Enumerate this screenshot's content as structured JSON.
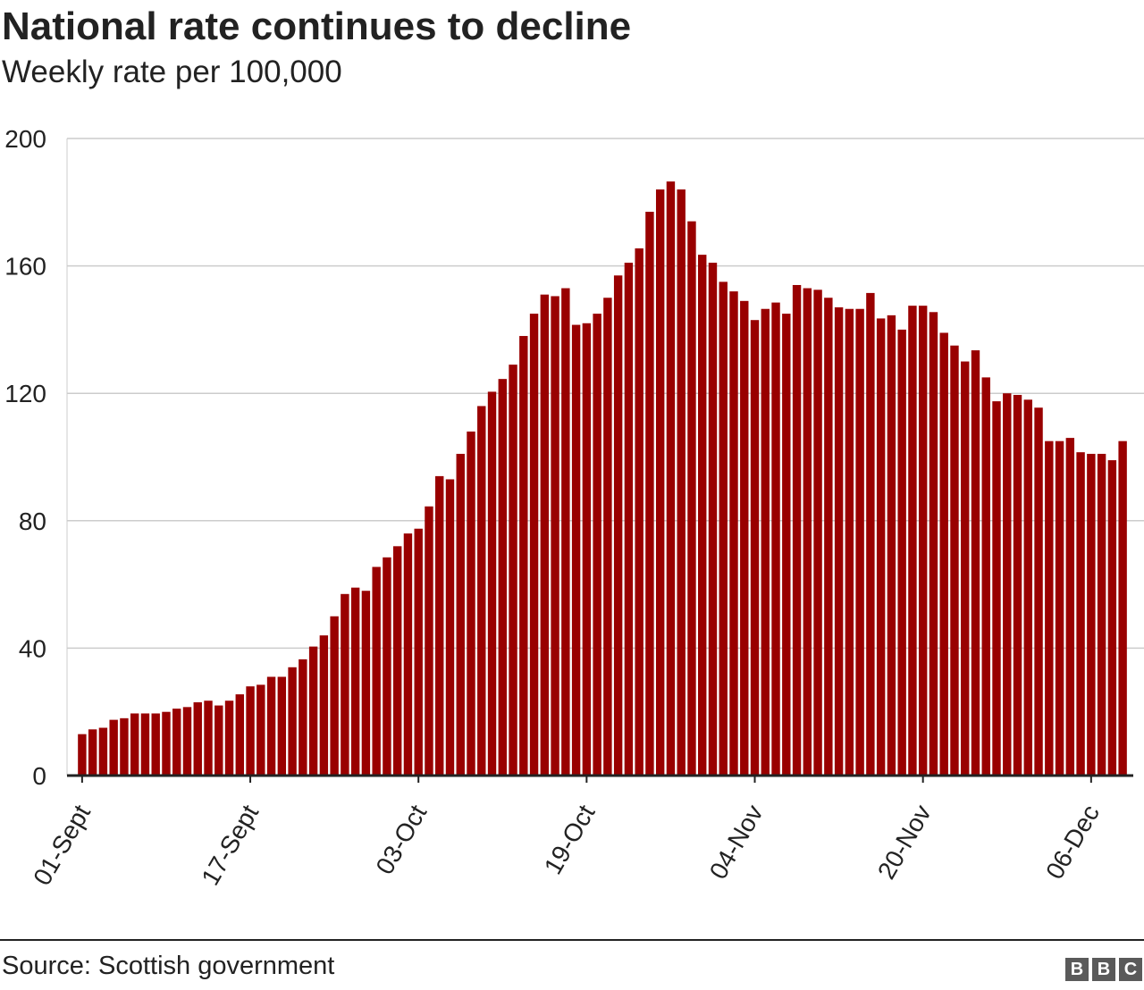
{
  "header": {
    "title": "National rate continues to decline",
    "subtitle": "Weekly rate per 100,000"
  },
  "footer": {
    "source": "Source: Scottish government",
    "logo_letters": [
      "B",
      "B",
      "C"
    ]
  },
  "colors": {
    "bar": "#990000",
    "grid": "#cccccc",
    "axis": "#222222",
    "text": "#222222",
    "logo_bg": "#5a5a5a"
  },
  "chart_data": {
    "type": "bar",
    "title": "National rate continues to decline",
    "subtitle": "Weekly rate per 100,000",
    "xlabel": "",
    "ylabel": "Weekly rate per 100,000",
    "ylim": [
      0,
      200
    ],
    "yticks": [
      0,
      40,
      80,
      120,
      160,
      200
    ],
    "grid": true,
    "xtick_labels": [
      {
        "label": "01-Sept",
        "index": 0
      },
      {
        "label": "17-Sept",
        "index": 16
      },
      {
        "label": "03-Oct",
        "index": 32
      },
      {
        "label": "19-Oct",
        "index": 48
      },
      {
        "label": "04-Nov",
        "index": 64
      },
      {
        "label": "20-Nov",
        "index": 80
      },
      {
        "label": "06-Dec",
        "index": 96
      }
    ],
    "series": [
      {
        "name": "Weekly rate per 100,000",
        "values": [
          13,
          14.5,
          15,
          17.5,
          18,
          19.5,
          19.5,
          19.5,
          20,
          21,
          21.5,
          23,
          23.5,
          22,
          23.5,
          25.5,
          28,
          28.5,
          31,
          31,
          34,
          36.5,
          40.5,
          44,
          50,
          57,
          59,
          58,
          65.5,
          68.5,
          72,
          76,
          77.5,
          84.5,
          94,
          93,
          101,
          108,
          116,
          120.5,
          124.5,
          129,
          138,
          145,
          151,
          150.5,
          153,
          141.5,
          142,
          145,
          150,
          157,
          161,
          165.5,
          177,
          184,
          186.5,
          184,
          174,
          163.5,
          161,
          155,
          152,
          149,
          143,
          146.5,
          148.5,
          145,
          154,
          153,
          152.5,
          150,
          147,
          146.5,
          146.5,
          151.5,
          143.5,
          144.5,
          140,
          147.5,
          147.5,
          145.5,
          139,
          135,
          130,
          133.5,
          125,
          117.5,
          120,
          119.5,
          118,
          115.5,
          105,
          105,
          106,
          101.5,
          101,
          101,
          99,
          105
        ]
      }
    ]
  }
}
